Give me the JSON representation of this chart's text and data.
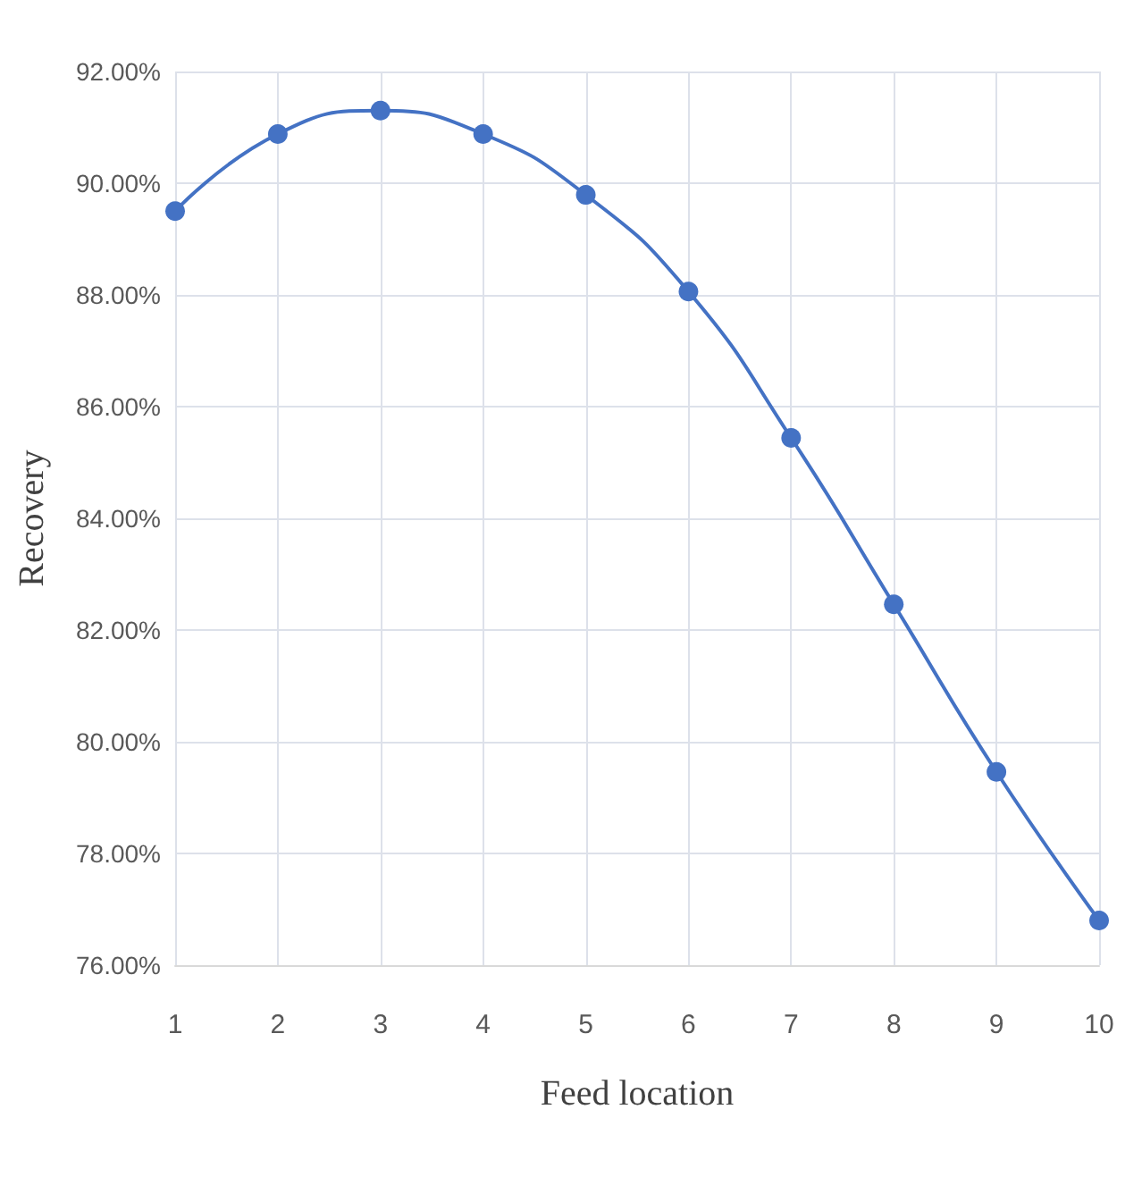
{
  "chart_data": {
    "type": "line",
    "xlabel": "Feed location",
    "ylabel": "Recovery",
    "categories": [
      "1",
      "2",
      "3",
      "4",
      "5",
      "6",
      "7",
      "8",
      "9",
      "10"
    ],
    "series": [
      {
        "color": "#4472c4",
        "values": [
          89.5,
          90.88,
          91.3,
          90.88,
          89.79,
          88.06,
          85.44,
          82.46,
          79.46,
          76.8
        ]
      }
    ],
    "ylim": [
      76,
      92
    ],
    "yticks": [
      {
        "value": 76,
        "label": "76.00%"
      },
      {
        "value": 78,
        "label": "78.00%"
      },
      {
        "value": 80,
        "label": "80.00%"
      },
      {
        "value": 82,
        "label": "82.00%"
      },
      {
        "value": 84,
        "label": "84.00%"
      },
      {
        "value": 86,
        "label": "86.00%"
      },
      {
        "value": 88,
        "label": "88.00%"
      },
      {
        "value": 90,
        "label": "90.00%"
      },
      {
        "value": 92,
        "label": "92.00%"
      }
    ],
    "grid": true,
    "marker": "circle",
    "line_style": "solid"
  }
}
